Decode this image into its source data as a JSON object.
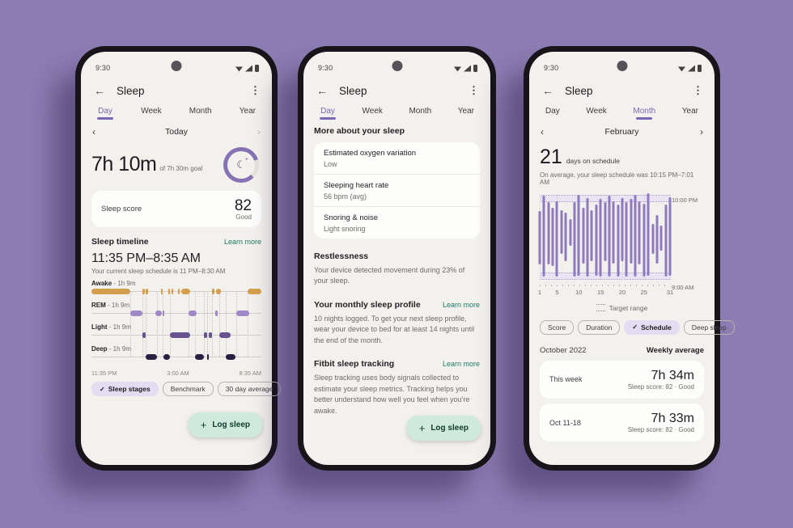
{
  "status": {
    "time": "9:30"
  },
  "header": {
    "title": "Sleep",
    "back_icon": "←",
    "menu_icon": "⋮"
  },
  "icons": {
    "check": "✓",
    "plus": "+",
    "prev": "‹",
    "next": "›",
    "moon": "☾",
    "moon_plus": "+"
  },
  "tabs": {
    "items": [
      "Day",
      "Week",
      "Month",
      "Year"
    ]
  },
  "fab": {
    "label": "Log sleep"
  },
  "learn_more": "Learn more",
  "colors": {
    "page_bg": "#8b7cb1",
    "accent_purple": "#7d66b4",
    "link_teal": "#1e7a67",
    "awake": "#d49f4d",
    "rem": "#9e88c7",
    "light": "#66538f",
    "deep": "#272041",
    "month_bar": "#8d79bd",
    "fab_bg": "#cfe9dc",
    "chip_selected_bg": "#e3ddf1"
  },
  "phone1": {
    "active_tab": "Day",
    "date_nav": {
      "label": "Today"
    },
    "duration": {
      "value": "7h 10m",
      "goal": "of 7h 30m goal"
    },
    "score_card": {
      "label": "Sleep score",
      "value": "82",
      "rating": "Good"
    },
    "timeline": {
      "title": "Sleep timeline",
      "range": "11:35 PM–8:35 AM",
      "subtitle": "Your current sleep schedule is 11 PM–8:30 AM",
      "stages": [
        {
          "name": "Awake",
          "duration": "1h 9m",
          "color": "#d49f4d",
          "segments": [
            [
              0,
              23
            ],
            [
              30,
              31.5
            ],
            [
              32,
              33.5
            ],
            [
              41,
              42
            ],
            [
              45,
              46
            ],
            [
              47,
              48
            ],
            [
              51,
              52
            ],
            [
              53,
              58
            ],
            [
              71,
              72.5
            ],
            [
              73.5,
              76
            ],
            [
              92,
              100
            ]
          ]
        },
        {
          "name": "REM",
          "duration": "1h 9m",
          "color": "#9e88c7",
          "segments": [
            [
              23,
              30
            ],
            [
              37.5,
              41.5
            ],
            [
              42,
              42.8
            ],
            [
              57,
              62
            ],
            [
              73,
              74.5
            ],
            [
              85,
              93
            ]
          ]
        },
        {
          "name": "Light",
          "duration": "1h 9m",
          "color": "#66538f",
          "segments": [
            [
              30,
              32
            ],
            [
              46,
              58
            ],
            [
              66,
              68
            ],
            [
              69,
              71
            ],
            [
              75,
              82
            ]
          ]
        },
        {
          "name": "Deep",
          "duration": "1h 9m",
          "color": "#272041",
          "segments": [
            [
              32,
              38.5
            ],
            [
              42.5,
              46
            ],
            [
              61,
              66
            ],
            [
              68,
              69
            ],
            [
              79,
              85
            ]
          ]
        }
      ],
      "connectors": [
        23,
        30,
        32,
        38.5,
        42,
        46,
        57,
        61,
        66,
        68,
        71,
        75,
        79,
        85,
        92
      ],
      "time_labels": [
        "11:35 PM",
        "3:00 AM",
        "8:35 AM"
      ]
    },
    "chips": [
      {
        "label": "Sleep stages",
        "selected": true
      },
      {
        "label": "Benchmark",
        "selected": false
      },
      {
        "label": "30 day average",
        "selected": false
      }
    ]
  },
  "phone2": {
    "active_tab": "Day",
    "section_title": "More about your sleep",
    "metric_cards": [
      {
        "title": "Estimated oxygen variation",
        "value": "Low"
      },
      {
        "title": "Sleeping heart rate",
        "value": "56 bpm (avg)"
      },
      {
        "title": "Snoring & noise",
        "value": "Light snoring"
      }
    ],
    "sections": [
      {
        "title": "Restlessness",
        "link": "",
        "body": "Your device detected movement during 23% of your sleep."
      },
      {
        "title": "Your monthly sleep profile",
        "link": "Learn more",
        "body": "10 nights logged. To get your next sleep profile, wear your device to bed for at least 14 nights until the end of the month."
      },
      {
        "title": "Fitbit sleep tracking",
        "link": "Learn more",
        "body": "Sleep tracking uses body signals collected to estimate your sleep metrics. Tracking helps you better understand how well you feel when you're awake."
      }
    ]
  },
  "phone3": {
    "active_tab": "Month",
    "date_nav": {
      "label": "February"
    },
    "summary": {
      "value": "21",
      "label": "days on schedule",
      "subtitle": "On average, your sleep schedule was 10:15 PM–7:01 AM"
    },
    "chart_data": {
      "type": "range-bar",
      "y_top_label": "10:00 PM",
      "y_bottom_label": "9:00 AM",
      "x_tick_days": [
        1,
        5,
        10,
        15,
        20,
        25,
        31
      ],
      "days": 31,
      "legend": "Target range",
      "bars": [
        [
          21,
          80
        ],
        [
          4,
          93
        ],
        [
          11,
          80
        ],
        [
          17,
          82
        ],
        [
          10,
          93
        ],
        [
          20,
          68
        ],
        [
          23,
          76
        ],
        [
          30,
          59
        ],
        [
          11,
          93
        ],
        [
          3,
          92
        ],
        [
          17,
          79
        ],
        [
          7,
          93
        ],
        [
          20,
          76
        ],
        [
          14,
          92
        ],
        [
          8,
          93
        ],
        [
          11,
          76
        ],
        [
          4,
          93
        ],
        [
          10,
          79
        ],
        [
          14,
          93
        ],
        [
          7,
          76
        ],
        [
          11,
          93
        ],
        [
          8,
          79
        ],
        [
          3,
          93
        ],
        [
          10,
          80
        ],
        [
          13,
          93
        ],
        [
          1,
          92
        ],
        [
          35,
          68
        ],
        [
          25,
          79
        ],
        [
          37,
          65
        ],
        [
          14,
          93
        ],
        [
          6,
          92
        ]
      ]
    },
    "chips": [
      {
        "label": "Score",
        "selected": false
      },
      {
        "label": "Duration",
        "selected": false
      },
      {
        "label": "Schedule",
        "selected": true
      },
      {
        "label": "Deep sleep",
        "selected": false
      }
    ],
    "list": {
      "month": "October 2022",
      "header": "Weekly average",
      "rows": [
        {
          "label": "This week",
          "value": "7h 34m",
          "sub": "Sleep score: 82 · Good"
        },
        {
          "label": "Oct 11-18",
          "value": "7h 33m",
          "sub": "Sleep score: 82 · Good"
        }
      ]
    }
  }
}
